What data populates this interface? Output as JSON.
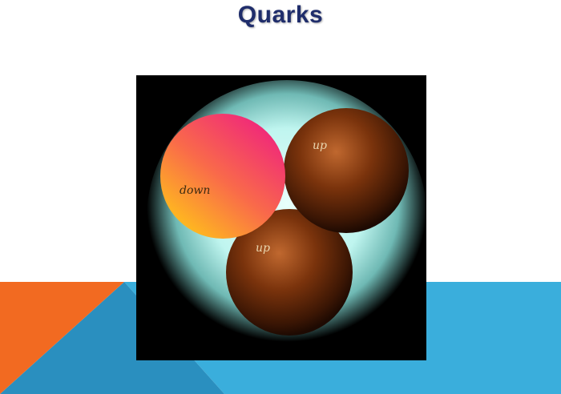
{
  "slide": {
    "title": "Quarks"
  },
  "diagram": {
    "quarks": [
      {
        "label": "down"
      },
      {
        "label": "up"
      },
      {
        "label": "up"
      }
    ]
  },
  "colors": {
    "title": "#1f2d6b",
    "accent_orange": "#f26a21",
    "accent_blue": "#3aaedc",
    "accent_dark_blue": "#2a8fbf",
    "figure_background": "#000000",
    "glow": "#bff5ef",
    "down_quark_top": "#f0287a",
    "down_quark_bottom": "#ffc21a",
    "up_quark": "#6b2a08"
  }
}
